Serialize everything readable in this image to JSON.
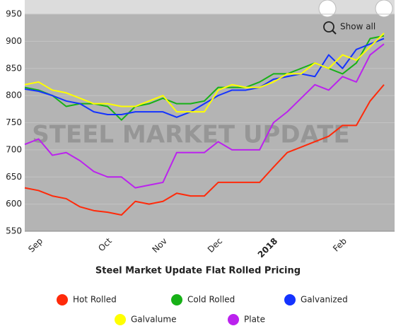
{
  "chart_data": {
    "type": "line",
    "title": "Steel Market Update Flat Rolled Pricing",
    "watermark": "STEEL MARKET UPDATE",
    "show_all_label": "Show all",
    "categories": [
      null,
      "Sep",
      null,
      null,
      null,
      null,
      "Oct",
      null,
      null,
      null,
      "Nov",
      null,
      null,
      null,
      "Dec",
      null,
      null,
      null,
      "2018",
      null,
      null,
      null,
      null,
      "Feb",
      null,
      null,
      null
    ],
    "series": [
      {
        "name": "Hot Rolled",
        "color": "#ff2a0a",
        "values": [
          630,
          625,
          615,
          610,
          595,
          588,
          585,
          580,
          605,
          600,
          605,
          620,
          615,
          615,
          640,
          640,
          640,
          640,
          668,
          695,
          705,
          715,
          725,
          745,
          745,
          790,
          820
        ]
      },
      {
        "name": "Cold Rolled",
        "color": "#17b117",
        "values": [
          815,
          810,
          800,
          780,
          785,
          785,
          780,
          755,
          780,
          785,
          795,
          785,
          785,
          790,
          815,
          815,
          815,
          825,
          840,
          840,
          850,
          860,
          850,
          840,
          860,
          905,
          910
        ]
      },
      {
        "name": "Galvanized",
        "color": "#1433ff",
        "values": [
          812,
          808,
          800,
          790,
          785,
          770,
          765,
          765,
          770,
          770,
          770,
          760,
          770,
          785,
          800,
          810,
          810,
          815,
          830,
          835,
          840,
          835,
          875,
          850,
          885,
          895,
          905
        ]
      },
      {
        "name": "Galvalume",
        "color": "#ffff00",
        "values": [
          820,
          825,
          810,
          805,
          795,
          785,
          785,
          780,
          780,
          790,
          800,
          770,
          770,
          770,
          810,
          820,
          815,
          815,
          825,
          840,
          840,
          860,
          850,
          875,
          865,
          890,
          915
        ]
      },
      {
        "name": "Plate",
        "color": "#bb22ee",
        "values": [
          710,
          720,
          690,
          695,
          680,
          660,
          650,
          650,
          630,
          635,
          640,
          695,
          695,
          695,
          715,
          700,
          700,
          700,
          750,
          770,
          795,
          820,
          810,
          835,
          825,
          875,
          895
        ]
      }
    ],
    "ylim": [
      550,
      950
    ],
    "yticks": [
      550,
      600,
      650,
      700,
      750,
      800,
      850,
      900,
      950
    ],
    "grid": true
  }
}
